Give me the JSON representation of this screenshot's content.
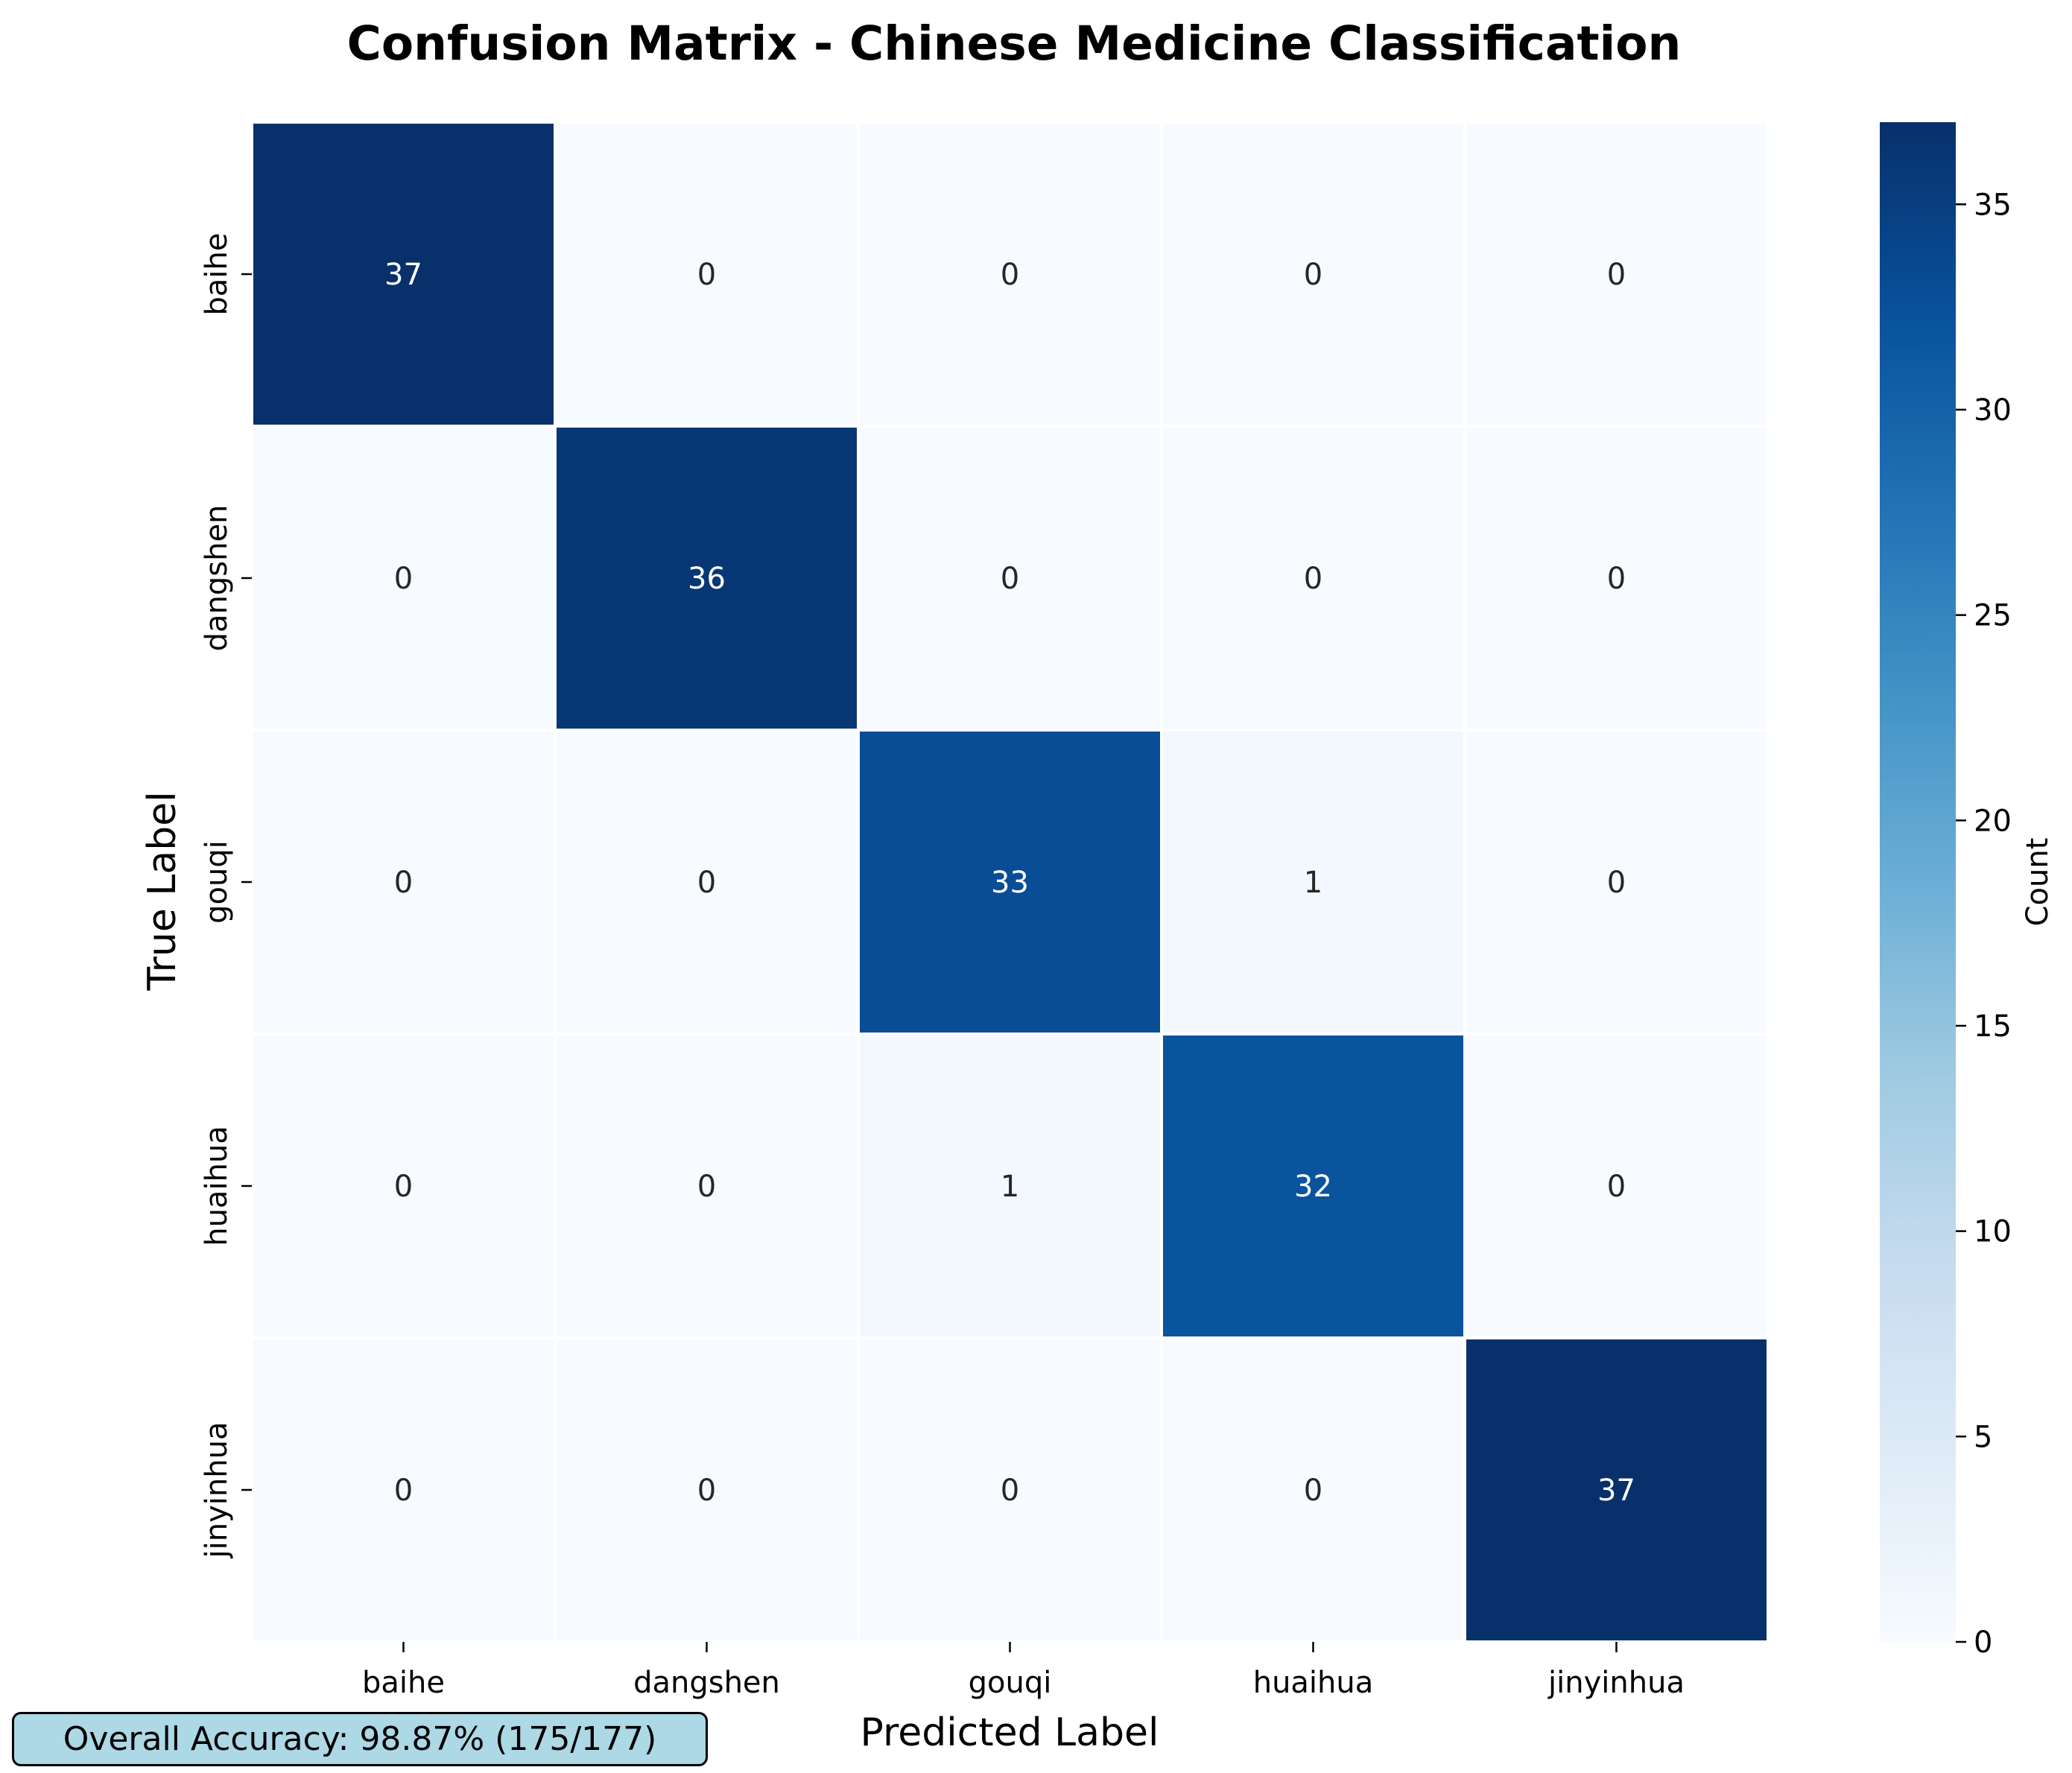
{
  "chart_data": {
    "type": "heatmap",
    "title": "Confusion Matrix - Chinese Medicine Classification",
    "xlabel": "Predicted Label",
    "ylabel": "True Label",
    "x_categories": [
      "baihe",
      "dangshen",
      "gouqi",
      "huaihua",
      "jinyinhua"
    ],
    "y_categories": [
      "baihe",
      "dangshen",
      "gouqi",
      "huaihua",
      "jinyinhua"
    ],
    "matrix": [
      [
        37,
        0,
        0,
        0,
        0
      ],
      [
        0,
        36,
        0,
        0,
        0
      ],
      [
        0,
        0,
        33,
        1,
        0
      ],
      [
        0,
        0,
        1,
        32,
        0
      ],
      [
        0,
        0,
        0,
        0,
        37
      ]
    ],
    "colormap": "Blues",
    "colorbar": {
      "label": "Count",
      "range": [
        0,
        37
      ],
      "ticks": [
        0,
        5,
        10,
        15,
        20,
        25,
        30,
        35
      ]
    },
    "annotation": "Overall Accuracy: 98.87% (175/177)"
  }
}
